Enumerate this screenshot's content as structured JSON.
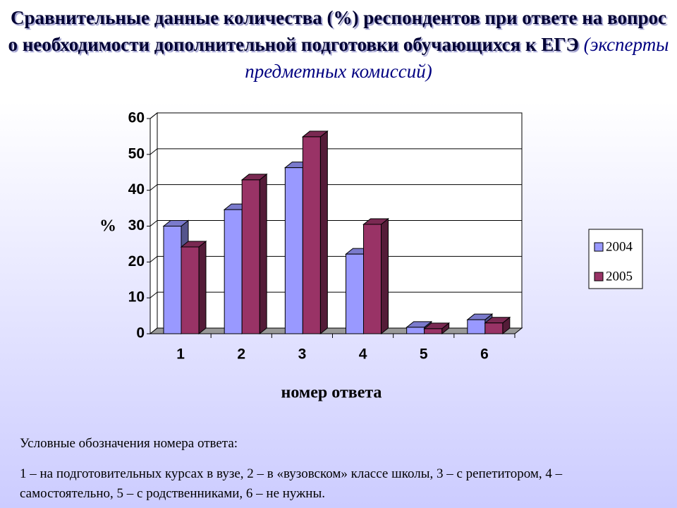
{
  "chart_data": {
    "type": "bar3d",
    "title": "Сравнительные данные количества (%) респондентов при ответе на вопрос о необходимости дополнительной подготовки обучающихся к ЕГЭ",
    "subtitle": "(эксперты предметных комиссий)",
    "y_label": "%",
    "x_label": "номер ответа",
    "categories": [
      "1",
      "2",
      "3",
      "4",
      "5",
      "6"
    ],
    "series": [
      {
        "name": "2004",
        "color": "#9999ff",
        "values": [
          30,
          34.6,
          46.3,
          22.2,
          1.8,
          3.9
        ]
      },
      {
        "name": "2005",
        "color": "#993366",
        "values": [
          24.2,
          42.9,
          54.9,
          30.5,
          1.4,
          3
        ]
      }
    ],
    "ylim": [
      0,
      60
    ],
    "yticks": [
      0,
      10,
      20,
      30,
      40,
      50,
      60
    ],
    "grid": true,
    "legend": "right",
    "annotations": [
      "Условные обозначения номера ответа:",
      "1 – на подготовительных курсах в вузе, 2 – в «вузовском» классе школы, 3 – с репетитором, 4 – самостоятельно, 5 – с родственниками, 6 – не нужны."
    ]
  }
}
